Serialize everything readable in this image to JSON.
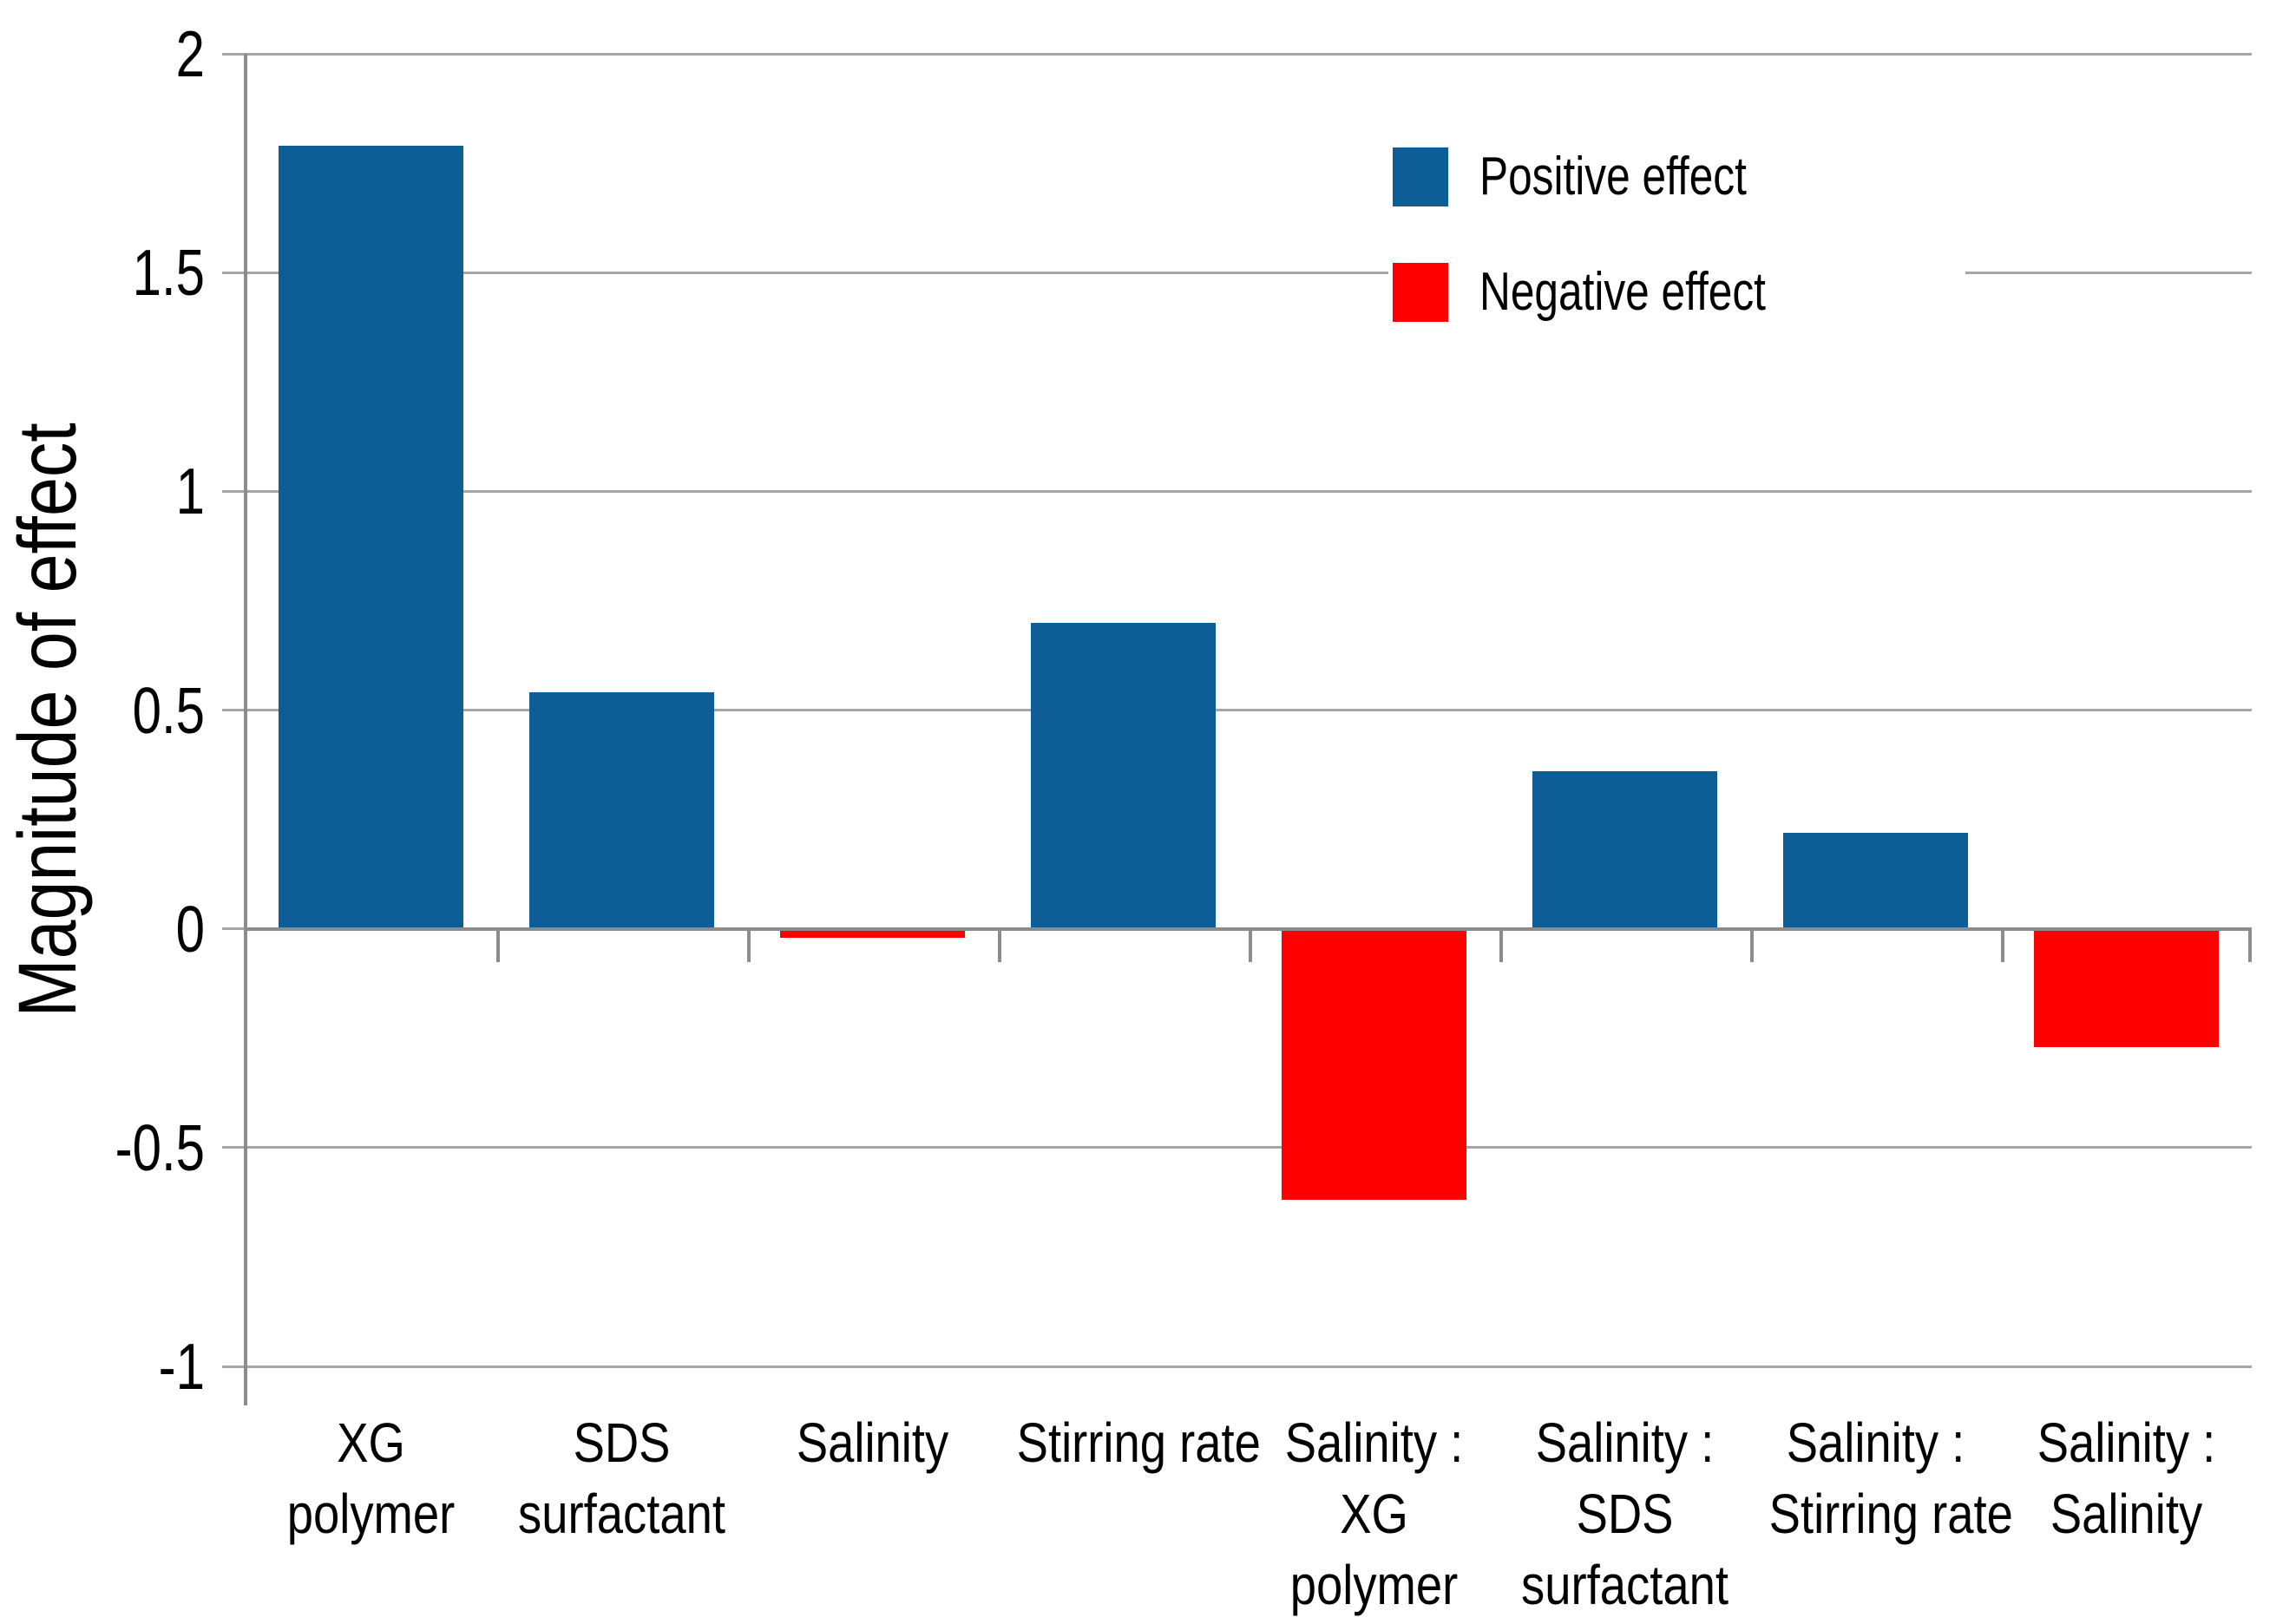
{
  "chart_data": {
    "type": "bar",
    "ylabel": "Magnitude of effect",
    "xlabel": "",
    "ylim": [
      -1,
      2
    ],
    "grid": true,
    "legend_position": "upper right",
    "yticks": [
      2,
      1.5,
      1,
      0.5,
      0,
      -0.5,
      -1
    ],
    "ytick_labels": [
      "2",
      "1.5",
      "1",
      "0.5",
      "0",
      "-0.5",
      "-1"
    ],
    "categories": [
      "XG polymer",
      "SDS surfactant",
      "Salinity",
      "Stirring rate",
      "Salinity : XG polymer",
      "Salinity : SDS surfactant",
      "Salinity : Stirring rate",
      "Salinity : Salinity"
    ],
    "category_label_lines": [
      [
        "XG",
        "polymer"
      ],
      [
        "SDS",
        "surfactant"
      ],
      [
        "Salinity"
      ],
      [
        "Stirring rate"
      ],
      [
        "Salinity :",
        "XG",
        "polymer"
      ],
      [
        "Salinity :",
        "SDS",
        "surfactant"
      ],
      [
        "Salinity :",
        "Stirring rate"
      ],
      [
        "Salinity :",
        "Salinity"
      ]
    ],
    "values": [
      1.79,
      0.54,
      -0.02,
      0.7,
      -0.62,
      0.36,
      0.22,
      -0.27
    ],
    "series_color_rule": "positive bars blue, negative bars red"
  },
  "legend": {
    "positive": "Positive effect",
    "negative": "Negative effect"
  },
  "colors": {
    "positive": "#0D5E96",
    "negative": "#FF0000",
    "gridline": "#A6A6A6",
    "axis": "#8C8C8C",
    "text": "#000000",
    "background": "#FFFFFF"
  }
}
